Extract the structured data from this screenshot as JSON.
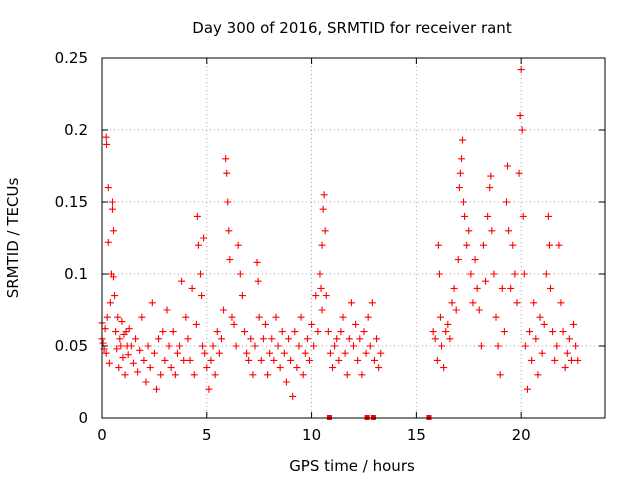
{
  "chart_data": {
    "type": "scatter",
    "title": "Day 300 of 2016, SRMTID for receiver rant",
    "xlabel": "GPS time / hours",
    "ylabel": "SRMTID / TECUs",
    "xlim": [
      0,
      24
    ],
    "ylim": [
      0,
      0.25
    ],
    "xticks": [
      0,
      5,
      10,
      15,
      20
    ],
    "xtick_labels": [
      "0",
      "5",
      "10",
      "15",
      "20"
    ],
    "yticks": [
      0,
      0.05,
      0.1,
      0.15,
      0.2,
      0.25
    ],
    "ytick_labels": [
      "0",
      "0.05",
      "0.1",
      "0.15",
      "0.2",
      "0.25"
    ],
    "grid": true,
    "marker": "+",
    "series": [
      {
        "name": "SRMTID",
        "color": "#ff0000",
        "marker": "+",
        "points": [
          [
            0.0,
            0.055
          ],
          [
            0.0,
            0.066
          ],
          [
            0.05,
            0.052
          ],
          [
            0.1,
            0.048
          ],
          [
            0.15,
            0.062
          ],
          [
            0.2,
            0.045
          ],
          [
            0.2,
            0.195
          ],
          [
            0.22,
            0.19
          ],
          [
            0.25,
            0.07
          ],
          [
            0.3,
            0.16
          ],
          [
            0.3,
            0.122
          ],
          [
            0.35,
            0.038
          ],
          [
            0.4,
            0.08
          ],
          [
            0.45,
            0.1
          ],
          [
            0.5,
            0.145
          ],
          [
            0.5,
            0.15
          ],
          [
            0.55,
            0.13
          ],
          [
            0.55,
            0.098
          ],
          [
            0.6,
            0.085
          ],
          [
            0.65,
            0.06
          ],
          [
            0.7,
            0.048
          ],
          [
            0.75,
            0.07
          ],
          [
            0.8,
            0.035
          ],
          [
            0.85,
            0.055
          ],
          [
            0.9,
            0.05
          ],
          [
            0.95,
            0.067
          ],
          [
            1.0,
            0.042
          ],
          [
            1.05,
            0.058
          ],
          [
            1.1,
            0.03
          ],
          [
            1.15,
            0.06
          ],
          [
            1.2,
            0.05
          ],
          [
            1.25,
            0.044
          ],
          [
            1.3,
            0.062
          ],
          [
            1.4,
            0.05
          ],
          [
            1.5,
            0.038
          ],
          [
            1.6,
            0.055
          ],
          [
            1.7,
            0.032
          ],
          [
            1.8,
            0.047
          ],
          [
            1.9,
            0.07
          ],
          [
            2.0,
            0.04
          ],
          [
            2.1,
            0.025
          ],
          [
            2.2,
            0.05
          ],
          [
            2.3,
            0.035
          ],
          [
            2.4,
            0.08
          ],
          [
            2.5,
            0.045
          ],
          [
            2.6,
            0.02
          ],
          [
            2.7,
            0.055
          ],
          [
            2.8,
            0.03
          ],
          [
            2.9,
            0.06
          ],
          [
            3.0,
            0.04
          ],
          [
            3.1,
            0.075
          ],
          [
            3.2,
            0.05
          ],
          [
            3.3,
            0.035
          ],
          [
            3.4,
            0.06
          ],
          [
            3.5,
            0.03
          ],
          [
            3.6,
            0.045
          ],
          [
            3.7,
            0.05
          ],
          [
            3.8,
            0.095
          ],
          [
            3.9,
            0.04
          ],
          [
            4.0,
            0.07
          ],
          [
            4.1,
            0.055
          ],
          [
            4.2,
            0.04
          ],
          [
            4.3,
            0.09
          ],
          [
            4.4,
            0.03
          ],
          [
            4.5,
            0.065
          ],
          [
            4.55,
            0.14
          ],
          [
            4.6,
            0.12
          ],
          [
            4.7,
            0.1
          ],
          [
            4.75,
            0.085
          ],
          [
            4.8,
            0.05
          ],
          [
            4.85,
            0.125
          ],
          [
            4.9,
            0.045
          ],
          [
            5.0,
            0.035
          ],
          [
            5.1,
            0.02
          ],
          [
            5.2,
            0.04
          ],
          [
            5.3,
            0.05
          ],
          [
            5.4,
            0.03
          ],
          [
            5.5,
            0.06
          ],
          [
            5.6,
            0.045
          ],
          [
            5.7,
            0.055
          ],
          [
            5.8,
            0.075
          ],
          [
            5.9,
            0.18
          ],
          [
            5.95,
            0.17
          ],
          [
            6.0,
            0.15
          ],
          [
            6.05,
            0.13
          ],
          [
            6.1,
            0.11
          ],
          [
            6.2,
            0.07
          ],
          [
            6.3,
            0.065
          ],
          [
            6.4,
            0.05
          ],
          [
            6.5,
            0.12
          ],
          [
            6.6,
            0.1
          ],
          [
            6.7,
            0.085
          ],
          [
            6.8,
            0.06
          ],
          [
            6.9,
            0.045
          ],
          [
            7.0,
            0.04
          ],
          [
            7.1,
            0.055
          ],
          [
            7.2,
            0.03
          ],
          [
            7.3,
            0.05
          ],
          [
            7.4,
            0.108
          ],
          [
            7.45,
            0.095
          ],
          [
            7.5,
            0.07
          ],
          [
            7.6,
            0.04
          ],
          [
            7.7,
            0.055
          ],
          [
            7.8,
            0.065
          ],
          [
            7.9,
            0.03
          ],
          [
            8.0,
            0.045
          ],
          [
            8.1,
            0.055
          ],
          [
            8.2,
            0.04
          ],
          [
            8.3,
            0.07
          ],
          [
            8.4,
            0.05
          ],
          [
            8.5,
            0.035
          ],
          [
            8.6,
            0.06
          ],
          [
            8.7,
            0.045
          ],
          [
            8.8,
            0.025
          ],
          [
            8.9,
            0.055
          ],
          [
            9.0,
            0.04
          ],
          [
            9.1,
            0.015
          ],
          [
            9.2,
            0.06
          ],
          [
            9.3,
            0.035
          ],
          [
            9.4,
            0.05
          ],
          [
            9.5,
            0.07
          ],
          [
            9.6,
            0.03
          ],
          [
            9.7,
            0.045
          ],
          [
            9.8,
            0.055
          ],
          [
            9.9,
            0.04
          ],
          [
            10.0,
            0.065
          ],
          [
            10.1,
            0.05
          ],
          [
            10.2,
            0.085
          ],
          [
            10.3,
            0.06
          ],
          [
            10.4,
            0.1
          ],
          [
            10.45,
            0.09
          ],
          [
            10.5,
            0.075
          ],
          [
            10.5,
            0.12
          ],
          [
            10.55,
            0.145
          ],
          [
            10.6,
            0.155
          ],
          [
            10.65,
            0.13
          ],
          [
            10.7,
            0.085
          ],
          [
            10.8,
            0.06
          ],
          [
            10.9,
            0.045
          ],
          [
            11.0,
            0.035
          ],
          [
            11.1,
            0.05
          ],
          [
            11.2,
            0.055
          ],
          [
            11.3,
            0.04
          ],
          [
            11.4,
            0.06
          ],
          [
            11.5,
            0.07
          ],
          [
            11.6,
            0.045
          ],
          [
            11.7,
            0.03
          ],
          [
            11.8,
            0.055
          ],
          [
            11.9,
            0.08
          ],
          [
            12.0,
            0.05
          ],
          [
            12.1,
            0.065
          ],
          [
            12.2,
            0.04
          ],
          [
            12.3,
            0.055
          ],
          [
            12.4,
            0.03
          ],
          [
            12.5,
            0.06
          ],
          [
            12.6,
            0.045
          ],
          [
            12.7,
            0.07
          ],
          [
            12.8,
            0.05
          ],
          [
            12.9,
            0.08
          ],
          [
            13.0,
            0.04
          ],
          [
            13.1,
            0.055
          ],
          [
            13.2,
            0.035
          ],
          [
            13.3,
            0.045
          ],
          [
            15.8,
            0.06
          ],
          [
            15.9,
            0.055
          ],
          [
            16.0,
            0.04
          ],
          [
            16.05,
            0.12
          ],
          [
            16.1,
            0.1
          ],
          [
            16.15,
            0.07
          ],
          [
            16.2,
            0.05
          ],
          [
            16.3,
            0.035
          ],
          [
            16.4,
            0.06
          ],
          [
            16.5,
            0.065
          ],
          [
            16.6,
            0.055
          ],
          [
            16.7,
            0.08
          ],
          [
            16.8,
            0.09
          ],
          [
            16.9,
            0.075
          ],
          [
            17.0,
            0.11
          ],
          [
            17.05,
            0.16
          ],
          [
            17.1,
            0.17
          ],
          [
            17.15,
            0.18
          ],
          [
            17.2,
            0.193
          ],
          [
            17.25,
            0.15
          ],
          [
            17.3,
            0.14
          ],
          [
            17.4,
            0.12
          ],
          [
            17.5,
            0.13
          ],
          [
            17.6,
            0.1
          ],
          [
            17.7,
            0.08
          ],
          [
            17.8,
            0.11
          ],
          [
            17.9,
            0.09
          ],
          [
            18.0,
            0.075
          ],
          [
            18.1,
            0.05
          ],
          [
            18.2,
            0.12
          ],
          [
            18.3,
            0.095
          ],
          [
            18.4,
            0.14
          ],
          [
            18.5,
            0.16
          ],
          [
            18.55,
            0.168
          ],
          [
            18.6,
            0.13
          ],
          [
            18.7,
            0.1
          ],
          [
            18.8,
            0.07
          ],
          [
            18.9,
            0.05
          ],
          [
            19.0,
            0.03
          ],
          [
            19.1,
            0.09
          ],
          [
            19.2,
            0.06
          ],
          [
            19.3,
            0.15
          ],
          [
            19.35,
            0.175
          ],
          [
            19.4,
            0.13
          ],
          [
            19.5,
            0.09
          ],
          [
            19.6,
            0.12
          ],
          [
            19.7,
            0.1
          ],
          [
            19.8,
            0.08
          ],
          [
            19.9,
            0.17
          ],
          [
            19.95,
            0.21
          ],
          [
            20.0,
            0.242
          ],
          [
            20.05,
            0.2
          ],
          [
            20.1,
            0.14
          ],
          [
            20.15,
            0.1
          ],
          [
            20.2,
            0.05
          ],
          [
            20.3,
            0.02
          ],
          [
            20.4,
            0.06
          ],
          [
            20.5,
            0.04
          ],
          [
            20.6,
            0.08
          ],
          [
            20.7,
            0.055
          ],
          [
            20.8,
            0.03
          ],
          [
            20.9,
            0.07
          ],
          [
            21.0,
            0.045
          ],
          [
            21.1,
            0.065
          ],
          [
            21.2,
            0.1
          ],
          [
            21.3,
            0.14
          ],
          [
            21.35,
            0.12
          ],
          [
            21.4,
            0.09
          ],
          [
            21.5,
            0.06
          ],
          [
            21.6,
            0.04
          ],
          [
            21.7,
            0.05
          ],
          [
            21.8,
            0.12
          ],
          [
            21.9,
            0.08
          ],
          [
            22.0,
            0.06
          ],
          [
            22.1,
            0.035
          ],
          [
            22.2,
            0.045
          ],
          [
            22.3,
            0.055
          ],
          [
            22.4,
            0.04
          ],
          [
            22.5,
            0.065
          ],
          [
            22.6,
            0.05
          ],
          [
            22.7,
            0.04
          ]
        ]
      }
    ],
    "gap_markers": {
      "color": "#ff0000",
      "x": [
        10.85,
        12.65,
        12.95,
        15.6
      ],
      "y": 0
    }
  }
}
